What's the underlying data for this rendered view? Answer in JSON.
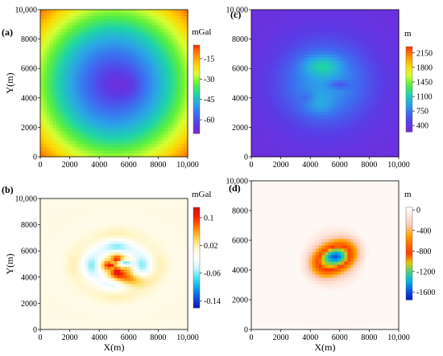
{
  "chart_data": [
    {
      "type": "heatmap",
      "panel_label": "(a)",
      "ylabel": "Y(m)",
      "xlabel": "",
      "xlim": [
        0,
        10000
      ],
      "ylim": [
        0,
        10000
      ],
      "x_ticks": [
        "0",
        "2000",
        "4000",
        "6000",
        "8000",
        "10,000"
      ],
      "y_ticks": [
        "0",
        "2000",
        "4000",
        "6000",
        "8000",
        "10,000"
      ],
      "colorbar": {
        "unit": "mGal",
        "ticks": [
          "-15",
          "-30",
          "-45",
          "-60"
        ],
        "tick_values": [
          -15,
          -30,
          -45,
          -60
        ],
        "range": [
          -70,
          -5
        ],
        "scheme": "rainbow"
      },
      "features": [
        {
          "shape": "radial-ring",
          "center": [
            5000,
            5000
          ],
          "min_value": -65,
          "edge_value": -10
        }
      ]
    },
    {
      "type": "heatmap",
      "panel_label": "(b)",
      "ylabel": "Y(m)",
      "xlabel": "X(m)",
      "xlim": [
        0,
        10000
      ],
      "ylim": [
        0,
        10000
      ],
      "x_ticks": [
        "0",
        "2000",
        "4000",
        "6000",
        "8000",
        "10,000"
      ],
      "y_ticks": [
        "0",
        "2000",
        "4000",
        "6000",
        "8000",
        "10,000"
      ],
      "colorbar": {
        "unit": "mGal",
        "ticks": [
          "0.1",
          "0.02",
          "-0.06",
          "-0.14"
        ],
        "tick_values": [
          0.1,
          0.02,
          -0.06,
          -0.14
        ],
        "range": [
          -0.16,
          0.13
        ],
        "scheme": "diverging"
      },
      "features": [
        {
          "shape": "residual-rings",
          "center": [
            5200,
            4900
          ],
          "max_value": 0.12,
          "min_value": -0.15
        }
      ]
    },
    {
      "type": "heatmap",
      "panel_label": "(c)",
      "ylabel": "",
      "xlabel": "",
      "xlim": [
        0,
        10000
      ],
      "ylim": [
        0,
        10000
      ],
      "x_ticks": [
        "0",
        "2000",
        "4000",
        "6000",
        "8000",
        "10,000"
      ],
      "y_ticks": [
        "0",
        "2000",
        "4000",
        "6000",
        "8000",
        "10,000"
      ],
      "colorbar": {
        "unit": "m",
        "ticks": [
          "2150",
          "1800",
          "1450",
          "1100",
          "750",
          "400"
        ],
        "tick_values": [
          2150,
          1800,
          1450,
          1100,
          750,
          400
        ],
        "range": [
          250,
          2300
        ],
        "scheme": "rainbow"
      },
      "features": [
        {
          "shape": "basin-floor",
          "center": [
            5000,
            5000
          ],
          "peak_value": 1300,
          "background_value": 350
        }
      ]
    },
    {
      "type": "heatmap",
      "panel_label": "(d)",
      "ylabel": "",
      "xlabel": "X(m)",
      "xlim": [
        0,
        10000
      ],
      "ylim": [
        0,
        10000
      ],
      "x_ticks": [
        "0",
        "2000",
        "4000",
        "6000",
        "8000",
        "10,000"
      ],
      "y_ticks": [
        "0",
        "2000",
        "4000",
        "6000",
        "8000",
        "10,000"
      ],
      "colorbar": {
        "unit": "m",
        "ticks": [
          "0",
          "-400",
          "-800",
          "-1200",
          "-1600"
        ],
        "tick_values": [
          0,
          -400,
          -800,
          -1200,
          -1600
        ],
        "range": [
          -1750,
          50
        ],
        "scheme": "depth"
      },
      "features": [
        {
          "shape": "depth-anomaly",
          "center": [
            5600,
            4800
          ],
          "min_value": -1650,
          "background_value": 0
        }
      ]
    }
  ]
}
